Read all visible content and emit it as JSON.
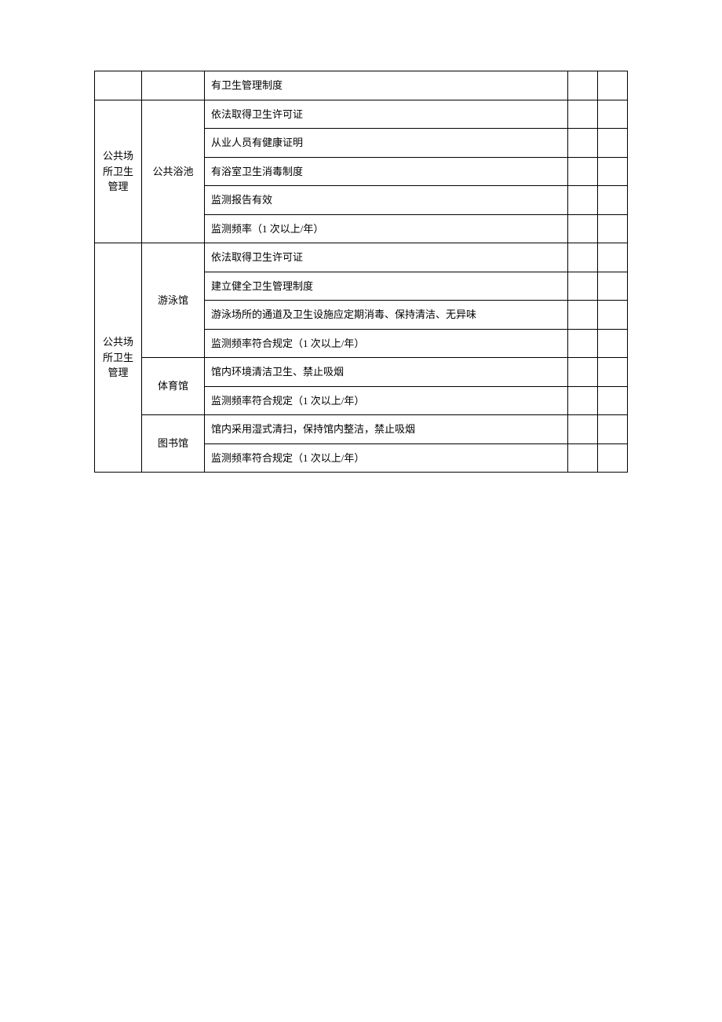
{
  "table": {
    "columns": {
      "col1_width": 60,
      "col2_width": 80,
      "col4_width": 38,
      "col5_width": 38
    },
    "rows": [
      {
        "c1": "",
        "c2": "",
        "c3": "有卫生管理制度",
        "c4": "",
        "c5": ""
      },
      {
        "c1": "公共场所卫生管理",
        "c2": "公共浴池",
        "c3": "依法取得卫生许可证",
        "c4": "",
        "c5": ""
      },
      {
        "c3": "从业人员有健康证明",
        "c4": "",
        "c5": ""
      },
      {
        "c3": "有浴室卫生消毒制度",
        "c4": "",
        "c5": ""
      },
      {
        "c3": "监测报告有效",
        "c4": "",
        "c5": ""
      },
      {
        "c3": "监测频率（1 次以上/年）",
        "c4": "",
        "c5": ""
      },
      {
        "c1": "公共场所卫生管理",
        "c2": "游泳馆",
        "c3": "依法取得卫生许可证",
        "c4": "",
        "c5": ""
      },
      {
        "c3": "建立健全卫生管理制度",
        "c4": "",
        "c5": ""
      },
      {
        "c3": "游泳场所的通道及卫生设施应定期消毒、保持清洁、无异味",
        "c4": "",
        "c5": ""
      },
      {
        "c3": "监测频率符合规定（1 次以上/年）",
        "c4": "",
        "c5": ""
      },
      {
        "c2": "体育馆",
        "c3": "馆内环境清洁卫生、禁止吸烟",
        "c4": "",
        "c5": ""
      },
      {
        "c3": "监测频率符合规定（1 次以上/年）",
        "c4": "",
        "c5": ""
      },
      {
        "c2": "图书馆",
        "c3": "馆内采用湿式清扫，保持馆内整洁，禁止吸烟",
        "c4": "",
        "c5": ""
      },
      {
        "c3": "监测频率符合规定（1 次以上/年）",
        "c4": "",
        "c5": ""
      }
    ],
    "styling": {
      "border_color": "#000000",
      "background_color": "#ffffff",
      "text_color": "#000000",
      "font_size": 13,
      "font_family": "SimSun"
    }
  }
}
